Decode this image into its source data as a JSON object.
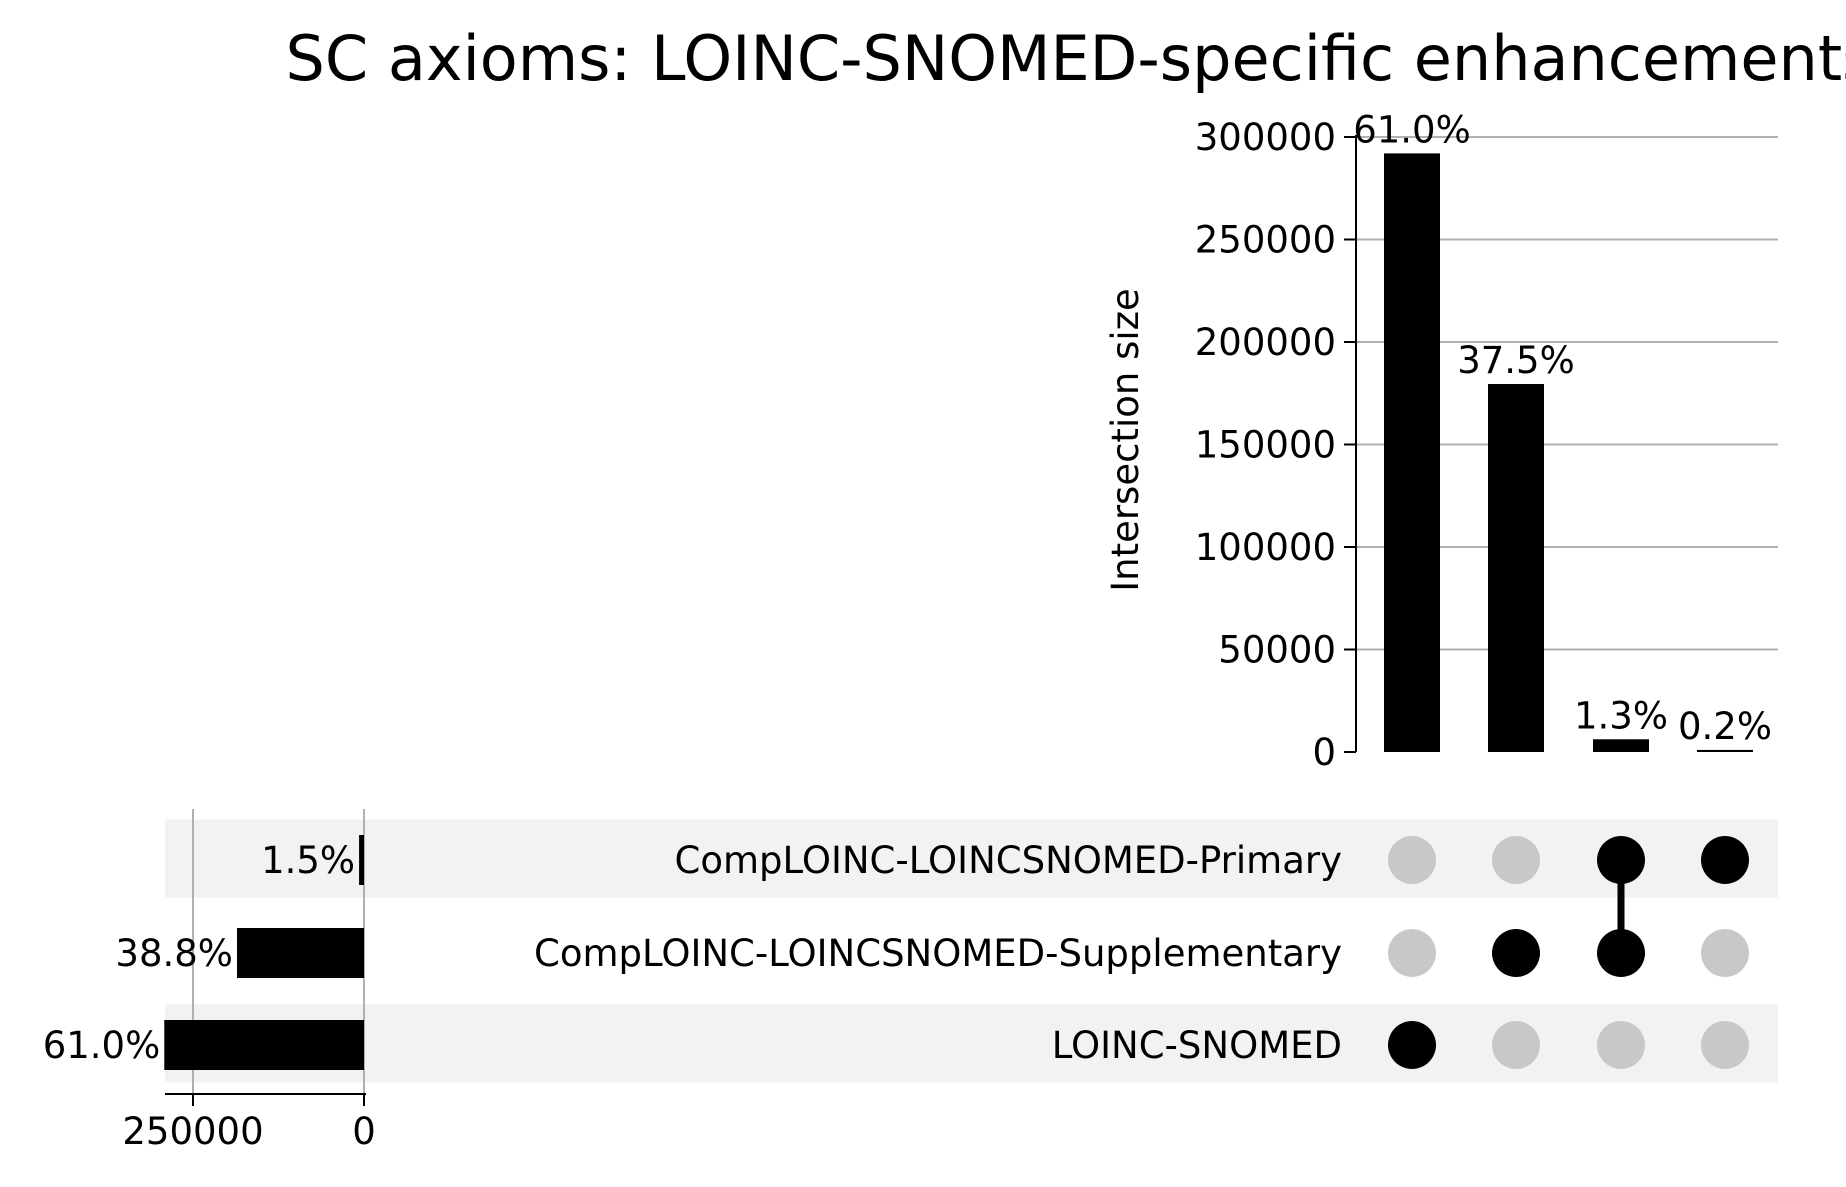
{
  "chart_data": {
    "type": "bar",
    "title": "SC axioms: LOINC-SNOMED-specific enhancements",
    "ylabel": "Intersection size",
    "ylim": [
      0,
      300000
    ],
    "yticks": [
      "0",
      "50000",
      "100000",
      "150000",
      "200000",
      "250000",
      "300000"
    ],
    "grid": true,
    "intersections": [
      {
        "sets": [
          "LOINC-SNOMED"
        ],
        "value": 292000,
        "label": "61.0%"
      },
      {
        "sets": [
          "CompLOINC-LOINCSNOMED-Supplementary"
        ],
        "value": 179500,
        "label": "37.5%"
      },
      {
        "sets": [
          "CompLOINC-LOINCSNOMED-Primary",
          "CompLOINC-LOINCSNOMED-Supplementary"
        ],
        "value": 6200,
        "label": "1.3%"
      },
      {
        "sets": [
          "CompLOINC-LOINCSNOMED-Primary"
        ],
        "value": 1000,
        "label": "0.2%"
      }
    ],
    "sets": [
      {
        "name": "CompLOINC-LOINCSNOMED-Primary",
        "value": 7200,
        "label": "1.5%"
      },
      {
        "name": "CompLOINC-LOINCSNOMED-Supplementary",
        "value": 185700,
        "label": "38.8%"
      },
      {
        "name": "LOINC-SNOMED",
        "value": 292000,
        "label": "61.0%"
      }
    ],
    "set_size_ticks": [
      "250000",
      "0"
    ],
    "set_size_tick_values": [
      250000,
      0
    ],
    "colors": {
      "bar": "#000000",
      "dot_active": "#000000",
      "dot_inactive": "#c8c8c8",
      "grid": "#b0b0b0",
      "row_shade": "#f2f2f2"
    }
  }
}
